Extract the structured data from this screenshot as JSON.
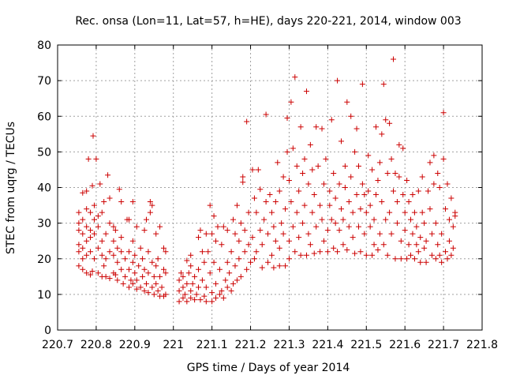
{
  "chart_data": {
    "type": "scatter",
    "title": "Rec. onsa (Lon=11, Lat=57, h=HE), days 220-221, 2014, window 003",
    "xlabel": "GPS time / Days of year 2014",
    "ylabel": "STEC from uqrg / TECUs",
    "xlim": [
      220.7,
      221.8
    ],
    "ylim": [
      0,
      80
    ],
    "x_ticks": [
      "220.7",
      "220.8",
      "220.9",
      "221",
      "221.1",
      "221.2",
      "221.3",
      "221.4",
      "221.5",
      "221.6",
      "221.7",
      "221.8"
    ],
    "y_ticks": [
      "0",
      "10",
      "20",
      "30",
      "40",
      "50",
      "60",
      "70",
      "80"
    ],
    "grid": true,
    "marker": "+",
    "color": "#cc0000",
    "points": [
      [
        220.755,
        18
      ],
      [
        220.755,
        22
      ],
      [
        220.755,
        24
      ],
      [
        220.755,
        28
      ],
      [
        220.755,
        30
      ],
      [
        220.755,
        33
      ],
      [
        220.765,
        17
      ],
      [
        220.765,
        20
      ],
      [
        220.765,
        23
      ],
      [
        220.765,
        27
      ],
      [
        220.765,
        31
      ],
      [
        220.765,
        38.5
      ],
      [
        220.775,
        16
      ],
      [
        220.775,
        21
      ],
      [
        220.775,
        25
      ],
      [
        220.775,
        29
      ],
      [
        220.775,
        34
      ],
      [
        220.775,
        39
      ],
      [
        220.78,
        48
      ],
      [
        220.785,
        15.5
      ],
      [
        220.785,
        22
      ],
      [
        220.785,
        26
      ],
      [
        220.785,
        28
      ],
      [
        220.785,
        33
      ],
      [
        220.79,
        16.5
      ],
      [
        220.79,
        40.5
      ],
      [
        220.792,
        54.5
      ],
      [
        220.795,
        20
      ],
      [
        220.795,
        27
      ],
      [
        220.795,
        31
      ],
      [
        220.795,
        35
      ],
      [
        220.8,
        48
      ],
      [
        220.805,
        16
      ],
      [
        220.805,
        23
      ],
      [
        220.805,
        29
      ],
      [
        220.805,
        32
      ],
      [
        220.81,
        41
      ],
      [
        220.815,
        15
      ],
      [
        220.815,
        21
      ],
      [
        220.815,
        25
      ],
      [
        220.815,
        33
      ],
      [
        220.82,
        18
      ],
      [
        220.82,
        36
      ],
      [
        220.825,
        15
      ],
      [
        220.825,
        20
      ],
      [
        220.825,
        27
      ],
      [
        220.83,
        43.5
      ],
      [
        220.835,
        14.5
      ],
      [
        220.835,
        22
      ],
      [
        220.835,
        30
      ],
      [
        220.835,
        37
      ],
      [
        220.845,
        16
      ],
      [
        220.845,
        21
      ],
      [
        220.845,
        25
      ],
      [
        220.845,
        29
      ],
      [
        220.85,
        15.5
      ],
      [
        220.85,
        28
      ],
      [
        220.855,
        14
      ],
      [
        220.855,
        19
      ],
      [
        220.855,
        23
      ],
      [
        220.86,
        39.5
      ],
      [
        220.865,
        17
      ],
      [
        220.865,
        22
      ],
      [
        220.865,
        26
      ],
      [
        220.865,
        36
      ],
      [
        220.87,
        13
      ],
      [
        220.875,
        15
      ],
      [
        220.875,
        20
      ],
      [
        220.88,
        31
      ],
      [
        220.885,
        12
      ],
      [
        220.885,
        17
      ],
      [
        220.885,
        22
      ],
      [
        220.885,
        31
      ],
      [
        220.89,
        14
      ],
      [
        220.895,
        13
      ],
      [
        220.895,
        19
      ],
      [
        220.895,
        25
      ],
      [
        220.895,
        36
      ],
      [
        220.9,
        16
      ],
      [
        220.9,
        21
      ],
      [
        220.905,
        11.5
      ],
      [
        220.905,
        14
      ],
      [
        220.905,
        29
      ],
      [
        220.91,
        18
      ],
      [
        220.915,
        12
      ],
      [
        220.915,
        23
      ],
      [
        220.92,
        15
      ],
      [
        220.92,
        20
      ],
      [
        220.925,
        11
      ],
      [
        220.925,
        17
      ],
      [
        220.925,
        28
      ],
      [
        220.93,
        13
      ],
      [
        220.93,
        31
      ],
      [
        220.935,
        10.5
      ],
      [
        220.935,
        16
      ],
      [
        220.935,
        22
      ],
      [
        220.94,
        33
      ],
      [
        220.94,
        36
      ],
      [
        220.945,
        12
      ],
      [
        220.945,
        19
      ],
      [
        220.945,
        35
      ],
      [
        220.95,
        10
      ],
      [
        220.95,
        15
      ],
      [
        220.955,
        13
      ],
      [
        220.955,
        18
      ],
      [
        220.955,
        27
      ],
      [
        220.96,
        11
      ],
      [
        220.96,
        20
      ],
      [
        220.965,
        9.5
      ],
      [
        220.965,
        15
      ],
      [
        220.965,
        29
      ],
      [
        220.97,
        12
      ],
      [
        220.975,
        9.5
      ],
      [
        220.975,
        17
      ],
      [
        220.975,
        23
      ],
      [
        220.98,
        10
      ],
      [
        220.98,
        16
      ],
      [
        220.98,
        22
      ],
      [
        221.015,
        8
      ],
      [
        221.015,
        11
      ],
      [
        221.015,
        14
      ],
      [
        221.02,
        16
      ],
      [
        221.025,
        9
      ],
      [
        221.025,
        12
      ],
      [
        221.025,
        15
      ],
      [
        221.03,
        10
      ],
      [
        221.035,
        8
      ],
      [
        221.035,
        13
      ],
      [
        221.035,
        19.5
      ],
      [
        221.04,
        16
      ],
      [
        221.045,
        9
      ],
      [
        221.045,
        11
      ],
      [
        221.045,
        18
      ],
      [
        221.045,
        21
      ],
      [
        221.05,
        13
      ],
      [
        221.055,
        8.5
      ],
      [
        221.055,
        15
      ],
      [
        221.06,
        10
      ],
      [
        221.065,
        12
      ],
      [
        221.065,
        17
      ],
      [
        221.065,
        26
      ],
      [
        221.07,
        8.5
      ],
      [
        221.07,
        28
      ],
      [
        221.075,
        14
      ],
      [
        221.075,
        22
      ],
      [
        221.08,
        9.5
      ],
      [
        221.08,
        19
      ],
      [
        221.085,
        8
      ],
      [
        221.085,
        12
      ],
      [
        221.085,
        27
      ],
      [
        221.09,
        22
      ],
      [
        221.095,
        35
      ],
      [
        221.095,
        16
      ],
      [
        221.1,
        8
      ],
      [
        221.1,
        10.5
      ],
      [
        221.1,
        27
      ],
      [
        221.105,
        19
      ],
      [
        221.105,
        32
      ],
      [
        221.11,
        9
      ],
      [
        221.11,
        13
      ],
      [
        221.11,
        25
      ],
      [
        221.115,
        29
      ],
      [
        221.12,
        10
      ],
      [
        221.12,
        17
      ],
      [
        221.125,
        11
      ],
      [
        221.125,
        24
      ],
      [
        221.13,
        9
      ],
      [
        221.13,
        29
      ],
      [
        221.135,
        14
      ],
      [
        221.14,
        12
      ],
      [
        221.14,
        19
      ],
      [
        221.14,
        28
      ],
      [
        221.145,
        16
      ],
      [
        221.15,
        11
      ],
      [
        221.15,
        22
      ],
      [
        221.155,
        13
      ],
      [
        221.155,
        31
      ],
      [
        221.16,
        18
      ],
      [
        221.16,
        27
      ],
      [
        221.165,
        14
      ],
      [
        221.165,
        35
      ],
      [
        221.17,
        20
      ],
      [
        221.17,
        25
      ],
      [
        221.175,
        15
      ],
      [
        221.175,
        30
      ],
      [
        221.18,
        41.5
      ],
      [
        221.18,
        43
      ],
      [
        221.185,
        22
      ],
      [
        221.185,
        28
      ],
      [
        221.19,
        17
      ],
      [
        221.19,
        58.5
      ],
      [
        221.195,
        24
      ],
      [
        221.195,
        33
      ],
      [
        221.2,
        19
      ],
      [
        221.205,
        26
      ],
      [
        221.205,
        45
      ],
      [
        221.21,
        20
      ],
      [
        221.21,
        37
      ],
      [
        221.215,
        22
      ],
      [
        221.215,
        33
      ],
      [
        221.22,
        45
      ],
      [
        221.225,
        28
      ],
      [
        221.225,
        39.5
      ],
      [
        221.23,
        17.5
      ],
      [
        221.23,
        24
      ],
      [
        221.235,
        31
      ],
      [
        221.24,
        60.5
      ],
      [
        221.24,
        36
      ],
      [
        221.245,
        19
      ],
      [
        221.245,
        27
      ],
      [
        221.25,
        38
      ],
      [
        221.255,
        21
      ],
      [
        221.255,
        33
      ],
      [
        221.26,
        17.5
      ],
      [
        221.26,
        29
      ],
      [
        221.265,
        36
      ],
      [
        221.265,
        25
      ],
      [
        221.27,
        47
      ],
      [
        221.275,
        18
      ],
      [
        221.275,
        23
      ],
      [
        221.275,
        39
      ],
      [
        221.28,
        30
      ],
      [
        221.285,
        27
      ],
      [
        221.285,
        43
      ],
      [
        221.29,
        18
      ],
      [
        221.29,
        34
      ],
      [
        221.295,
        50
      ],
      [
        221.295,
        59.5
      ],
      [
        221.3,
        20
      ],
      [
        221.3,
        25
      ],
      [
        221.3,
        42
      ],
      [
        221.305,
        64
      ],
      [
        221.305,
        36
      ],
      [
        221.31,
        51
      ],
      [
        221.31,
        29
      ],
      [
        221.315,
        71
      ],
      [
        221.315,
        22
      ],
      [
        221.32,
        33
      ],
      [
        221.32,
        46
      ],
      [
        221.325,
        26
      ],
      [
        221.325,
        39
      ],
      [
        221.33,
        57
      ],
      [
        221.33,
        21
      ],
      [
        221.335,
        44
      ],
      [
        221.335,
        30
      ],
      [
        221.34,
        35
      ],
      [
        221.34,
        48
      ],
      [
        221.345,
        21
      ],
      [
        221.345,
        67
      ],
      [
        221.35,
        27
      ],
      [
        221.35,
        41
      ],
      [
        221.355,
        52
      ],
      [
        221.355,
        24
      ],
      [
        221.36,
        33
      ],
      [
        221.36,
        45
      ],
      [
        221.365,
        21.5
      ],
      [
        221.365,
        38
      ],
      [
        221.37,
        57
      ],
      [
        221.37,
        29
      ],
      [
        221.375,
        46
      ],
      [
        221.38,
        22
      ],
      [
        221.38,
        35
      ],
      [
        221.385,
        56.5
      ],
      [
        221.385,
        31
      ],
      [
        221.39,
        41
      ],
      [
        221.39,
        25
      ],
      [
        221.395,
        48
      ],
      [
        221.4,
        22
      ],
      [
        221.4,
        28
      ],
      [
        221.405,
        35
      ],
      [
        221.405,
        39
      ],
      [
        221.41,
        59
      ],
      [
        221.41,
        31
      ],
      [
        221.415,
        23
      ],
      [
        221.415,
        44
      ],
      [
        221.42,
        30
      ],
      [
        221.42,
        37
      ],
      [
        221.425,
        70
      ],
      [
        221.425,
        22
      ],
      [
        221.43,
        41
      ],
      [
        221.43,
        28
      ],
      [
        221.435,
        53
      ],
      [
        221.435,
        34
      ],
      [
        221.44,
        24
      ],
      [
        221.44,
        31
      ],
      [
        221.445,
        46
      ],
      [
        221.445,
        40
      ],
      [
        221.45,
        64
      ],
      [
        221.45,
        22.5
      ],
      [
        221.455,
        36
      ],
      [
        221.455,
        29
      ],
      [
        221.46,
        60
      ],
      [
        221.46,
        43
      ],
      [
        221.465,
        26
      ],
      [
        221.465,
        33
      ],
      [
        221.47,
        50
      ],
      [
        221.47,
        21.5
      ],
      [
        221.475,
        56.5
      ],
      [
        221.475,
        38
      ],
      [
        221.48,
        29
      ],
      [
        221.48,
        46
      ],
      [
        221.485,
        22
      ],
      [
        221.485,
        34
      ],
      [
        221.49,
        41
      ],
      [
        221.49,
        69
      ],
      [
        221.495,
        27
      ],
      [
        221.495,
        38
      ],
      [
        221.5,
        21
      ],
      [
        221.5,
        33
      ],
      [
        221.505,
        49
      ],
      [
        221.505,
        39
      ],
      [
        221.51,
        29
      ],
      [
        221.51,
        35
      ],
      [
        221.515,
        21
      ],
      [
        221.515,
        45
      ],
      [
        221.52,
        24
      ],
      [
        221.52,
        31
      ],
      [
        221.525,
        57
      ],
      [
        221.525,
        38
      ],
      [
        221.53,
        42
      ],
      [
        221.53,
        22.5
      ],
      [
        221.535,
        47
      ],
      [
        221.535,
        27
      ],
      [
        221.54,
        55
      ],
      [
        221.54,
        36
      ],
      [
        221.545,
        69
      ],
      [
        221.545,
        24
      ],
      [
        221.55,
        31
      ],
      [
        221.55,
        59
      ],
      [
        221.555,
        44
      ],
      [
        221.555,
        21
      ],
      [
        221.56,
        58
      ],
      [
        221.56,
        33
      ],
      [
        221.565,
        48
      ],
      [
        221.565,
        27
      ],
      [
        221.57,
        76
      ],
      [
        221.57,
        39
      ],
      [
        221.575,
        20
      ],
      [
        221.575,
        44
      ],
      [
        221.58,
        30
      ],
      [
        221.58,
        36
      ],
      [
        221.585,
        52
      ],
      [
        221.585,
        43
      ],
      [
        221.59,
        20
      ],
      [
        221.59,
        25
      ],
      [
        221.595,
        51
      ],
      [
        221.595,
        38
      ],
      [
        221.6,
        33
      ],
      [
        221.6,
        28
      ],
      [
        221.605,
        20
      ],
      [
        221.605,
        42
      ],
      [
        221.61,
        24
      ],
      [
        221.61,
        36
      ],
      [
        221.615,
        31
      ],
      [
        221.615,
        21
      ],
      [
        221.62,
        38
      ],
      [
        221.62,
        27
      ],
      [
        221.625,
        20
      ],
      [
        221.625,
        33
      ],
      [
        221.63,
        24
      ],
      [
        221.63,
        29
      ],
      [
        221.635,
        39
      ],
      [
        221.635,
        22
      ],
      [
        221.64,
        19
      ],
      [
        221.64,
        26
      ],
      [
        221.645,
        33
      ],
      [
        221.645,
        43
      ],
      [
        221.65,
        23
      ],
      [
        221.65,
        30
      ],
      [
        221.655,
        19
      ],
      [
        221.655,
        25
      ],
      [
        221.66,
        39
      ],
      [
        221.665,
        47
      ],
      [
        221.665,
        34
      ],
      [
        221.67,
        21
      ],
      [
        221.67,
        27
      ],
      [
        221.675,
        49
      ],
      [
        221.675,
        41
      ],
      [
        221.68,
        20
      ],
      [
        221.68,
        30
      ],
      [
        221.685,
        24
      ],
      [
        221.685,
        44
      ],
      [
        221.69,
        40
      ],
      [
        221.69,
        21
      ],
      [
        221.695,
        19
      ],
      [
        221.695,
        27
      ],
      [
        221.7,
        61
      ],
      [
        221.7,
        48
      ],
      [
        221.705,
        22
      ],
      [
        221.705,
        34
      ],
      [
        221.71,
        41
      ],
      [
        221.71,
        20
      ],
      [
        221.715,
        25
      ],
      [
        221.715,
        31
      ],
      [
        221.72,
        37
      ],
      [
        221.72,
        21
      ],
      [
        221.725,
        23
      ],
      [
        221.725,
        29
      ],
      [
        221.73,
        33
      ],
      [
        221.73,
        32
      ]
    ]
  }
}
